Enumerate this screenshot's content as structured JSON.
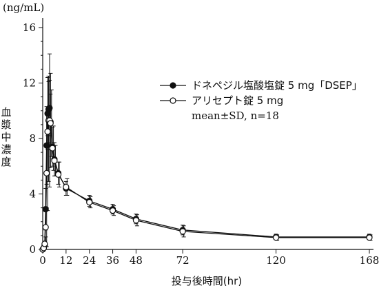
{
  "chart_data": {
    "type": "line",
    "unit_label": "(ng/mL)",
    "ylabel": "血漿中濃度",
    "xlabel": "投与後時間(hr)",
    "xlim": [
      0,
      168
    ],
    "ylim": [
      0,
      16
    ],
    "x_ticks": [
      0,
      12,
      24,
      36,
      48,
      72,
      120,
      168
    ],
    "y_ticks": [
      0,
      4,
      8,
      12,
      16
    ],
    "legend_position": "top-right",
    "legend_note": "mean±SD, n=18",
    "series": [
      {
        "name": "ドネペジル塩酸塩錠 5 mg「DSEP」",
        "marker": "filled-circle",
        "x": [
          0,
          0.5,
          1,
          1.5,
          2,
          2.5,
          3,
          3.5,
          4,
          5,
          6,
          8,
          12,
          24,
          36,
          48,
          72,
          120,
          168
        ],
        "y": [
          0,
          0.1,
          0.3,
          2.9,
          7.5,
          9.8,
          10.1,
          10.2,
          9.2,
          7.4,
          6.5,
          5.5,
          4.4,
          3.5,
          2.9,
          2.2,
          1.4,
          0.9,
          0.9
        ],
        "sd": [
          0,
          0.1,
          0.3,
          1.5,
          2.8,
          2.6,
          2.4,
          2.0,
          2.0,
          1.4,
          1.2,
          0.8,
          0.5,
          0.4,
          0.35,
          0.35,
          0.35,
          0.2,
          0.2
        ]
      },
      {
        "name": "アリセプト錠 5 mg",
        "marker": "open-circle",
        "x": [
          0,
          0.5,
          1,
          1.5,
          2,
          2.5,
          3,
          3.5,
          4,
          5,
          6,
          8,
          12,
          24,
          36,
          48,
          72,
          120,
          168
        ],
        "y": [
          0,
          0.1,
          0.4,
          1.6,
          5.5,
          8.5,
          9.3,
          9.3,
          9.1,
          7.3,
          6.4,
          5.4,
          4.5,
          3.4,
          2.8,
          2.1,
          1.3,
          0.85,
          0.85
        ],
        "sd": [
          0,
          0.1,
          0.5,
          1.4,
          2.7,
          3.6,
          4.8,
          3.4,
          2.4,
          1.6,
          1.1,
          0.9,
          0.6,
          0.4,
          0.35,
          0.4,
          0.4,
          0.2,
          0.2
        ]
      }
    ]
  }
}
